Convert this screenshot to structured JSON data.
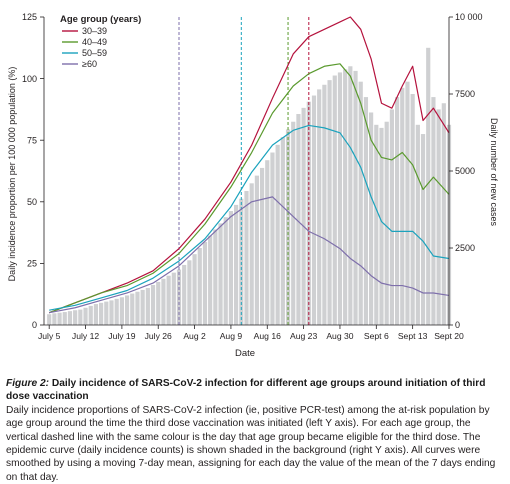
{
  "chart_data": {
    "type": "line",
    "xlabel": "Date",
    "ylabel": "Daily incidence proportion per 100 000 population (%)",
    "y2label": "Daily number of new cases",
    "ylim": [
      0,
      125
    ],
    "y2lim": [
      0,
      10000
    ],
    "yticks": [
      0,
      25,
      50,
      75,
      100,
      125
    ],
    "y2ticks": [
      "0",
      "2500",
      "5000",
      "7500",
      "10 000"
    ],
    "y2tick_values": [
      0,
      2500,
      5000,
      7500,
      10000
    ],
    "xlim": [
      "2021-07-04",
      "2021-09-20"
    ],
    "xticks": [
      "July 5",
      "July 12",
      "July 19",
      "July 26",
      "Aug 2",
      "Aug 9",
      "Aug 16",
      "Aug 23",
      "Aug 30",
      "Sept 6",
      "Sept 13",
      "Sept 20"
    ],
    "xtick_dates": [
      "2021-07-05",
      "2021-07-12",
      "2021-07-19",
      "2021-07-26",
      "2021-08-02",
      "2021-08-09",
      "2021-08-16",
      "2021-08-23",
      "2021-08-30",
      "2021-09-06",
      "2021-09-13",
      "2021-09-20"
    ],
    "grid": false,
    "legend": {
      "title": "Age group (years)",
      "position": "top-left",
      "entries": [
        "30–39",
        "40–49",
        "50–59",
        "≥60"
      ]
    },
    "series": [
      {
        "name": "30–39",
        "color": "#b5123d",
        "eligible_date": "2021-08-24",
        "x": [
          "2021-07-05",
          "2021-07-10",
          "2021-07-15",
          "2021-07-20",
          "2021-07-25",
          "2021-07-30",
          "2021-08-04",
          "2021-08-09",
          "2021-08-13",
          "2021-08-17",
          "2021-08-21",
          "2021-08-24",
          "2021-08-27",
          "2021-08-30",
          "2021-09-01",
          "2021-09-03",
          "2021-09-05",
          "2021-09-07",
          "2021-09-09",
          "2021-09-11",
          "2021-09-13",
          "2021-09-15",
          "2021-09-17",
          "2021-09-20"
        ],
        "y": [
          5,
          9,
          13,
          17,
          22,
          31,
          43,
          58,
          73,
          92,
          110,
          117,
          120,
          123,
          125,
          120,
          108,
          90,
          88,
          97,
          105,
          83,
          88,
          78
        ]
      },
      {
        "name": "40–49",
        "color": "#5a9a2e",
        "eligible_date": "2021-08-20",
        "x": [
          "2021-07-05",
          "2021-07-10",
          "2021-07-15",
          "2021-07-20",
          "2021-07-25",
          "2021-07-30",
          "2021-08-04",
          "2021-08-09",
          "2021-08-13",
          "2021-08-17",
          "2021-08-21",
          "2021-08-24",
          "2021-08-27",
          "2021-08-30",
          "2021-09-01",
          "2021-09-03",
          "2021-09-05",
          "2021-09-07",
          "2021-09-09",
          "2021-09-11",
          "2021-09-13",
          "2021-09-15",
          "2021-09-17",
          "2021-09-20"
        ],
        "y": [
          5,
          9,
          13,
          16,
          21,
          29,
          41,
          56,
          70,
          86,
          97,
          102,
          105,
          106,
          101,
          90,
          75,
          68,
          67,
          70,
          65,
          55,
          60,
          53
        ]
      },
      {
        "name": "50–59",
        "color": "#1ba3bd",
        "eligible_date": "2021-08-11",
        "x": [
          "2021-07-05",
          "2021-07-10",
          "2021-07-15",
          "2021-07-20",
          "2021-07-25",
          "2021-07-30",
          "2021-08-04",
          "2021-08-09",
          "2021-08-13",
          "2021-08-17",
          "2021-08-21",
          "2021-08-24",
          "2021-08-27",
          "2021-08-30",
          "2021-09-01",
          "2021-09-03",
          "2021-09-05",
          "2021-09-07",
          "2021-09-09",
          "2021-09-11",
          "2021-09-13",
          "2021-09-15",
          "2021-09-17",
          "2021-09-20"
        ],
        "y": [
          6,
          8,
          11,
          14,
          19,
          26,
          35,
          48,
          62,
          73,
          79,
          81,
          80,
          78,
          72,
          64,
          52,
          42,
          38,
          38,
          38,
          34,
          28,
          27
        ]
      },
      {
        "name": "≥60",
        "color": "#7e6fab",
        "eligible_date": "2021-07-30",
        "x": [
          "2021-07-05",
          "2021-07-10",
          "2021-07-15",
          "2021-07-20",
          "2021-07-25",
          "2021-07-30",
          "2021-08-04",
          "2021-08-09",
          "2021-08-13",
          "2021-08-17",
          "2021-08-21",
          "2021-08-24",
          "2021-08-27",
          "2021-08-30",
          "2021-09-01",
          "2021-09-03",
          "2021-09-05",
          "2021-09-07",
          "2021-09-09",
          "2021-09-11",
          "2021-09-13",
          "2021-09-15",
          "2021-09-17",
          "2021-09-20"
        ],
        "y": [
          5,
          7,
          10,
          13,
          17,
          24,
          34,
          44,
          50,
          52,
          44,
          38,
          35,
          31,
          27,
          24,
          20,
          17,
          16,
          16,
          15,
          13,
          13,
          12
        ]
      }
    ],
    "background_bars": {
      "name": "Daily number of new cases",
      "color": "#cfd0d2",
      "x": [
        "2021-07-05",
        "2021-07-06",
        "2021-07-07",
        "2021-07-08",
        "2021-07-09",
        "2021-07-10",
        "2021-07-11",
        "2021-07-12",
        "2021-07-13",
        "2021-07-14",
        "2021-07-15",
        "2021-07-16",
        "2021-07-17",
        "2021-07-18",
        "2021-07-19",
        "2021-07-20",
        "2021-07-21",
        "2021-07-22",
        "2021-07-23",
        "2021-07-24",
        "2021-07-25",
        "2021-07-26",
        "2021-07-27",
        "2021-07-28",
        "2021-07-29",
        "2021-07-30",
        "2021-07-31",
        "2021-08-01",
        "2021-08-02",
        "2021-08-03",
        "2021-08-04",
        "2021-08-05",
        "2021-08-06",
        "2021-08-07",
        "2021-08-08",
        "2021-08-09",
        "2021-08-10",
        "2021-08-11",
        "2021-08-12",
        "2021-08-13",
        "2021-08-14",
        "2021-08-15",
        "2021-08-16",
        "2021-08-17",
        "2021-08-18",
        "2021-08-19",
        "2021-08-20",
        "2021-08-21",
        "2021-08-22",
        "2021-08-23",
        "2021-08-24",
        "2021-08-25",
        "2021-08-26",
        "2021-08-27",
        "2021-08-28",
        "2021-08-29",
        "2021-08-30",
        "2021-08-31",
        "2021-09-01",
        "2021-09-02",
        "2021-09-03",
        "2021-09-04",
        "2021-09-05",
        "2021-09-06",
        "2021-09-07",
        "2021-09-08",
        "2021-09-09",
        "2021-09-10",
        "2021-09-11",
        "2021-09-12",
        "2021-09-13",
        "2021-09-14",
        "2021-09-15",
        "2021-09-16",
        "2021-09-17",
        "2021-09-18",
        "2021-09-19",
        "2021-09-20"
      ],
      "values": [
        350,
        380,
        400,
        420,
        450,
        480,
        500,
        560,
        620,
        680,
        720,
        760,
        800,
        850,
        900,
        960,
        1020,
        1080,
        1140,
        1200,
        1300,
        1400,
        1500,
        1600,
        1700,
        1800,
        1950,
        2100,
        2300,
        2500,
        2700,
        2900,
        3100,
        3300,
        3500,
        3700,
        3900,
        4100,
        4350,
        4600,
        4850,
        5100,
        5350,
        5600,
        5850,
        6100,
        6350,
        6600,
        6850,
        7050,
        7250,
        7450,
        7650,
        7800,
        7950,
        8100,
        8200,
        8300,
        8400,
        8250,
        7900,
        7400,
        6900,
        6500,
        6400,
        6600,
        7000,
        7400,
        7700,
        7900,
        7500,
        6500,
        6200,
        9000,
        7400,
        7000,
        7200,
        6500
      ]
    }
  },
  "caption": {
    "figure_label": "Figure 2:",
    "title": "Daily incidence of SARS-CoV-2 infection for different age groups around initiation of third dose vaccination",
    "body": "Daily incidence proportions of SARS-CoV-2 infection (ie, positive PCR-test) among the at-risk population by age group around the time the third dose vaccination was initiated (left Y axis). For each age group, the vertical dashed line with the same colour is the day that age group became eligible for the third dose. The epidemic curve (daily incidence counts) is shown shaded in the background (right Y axis). All curves were smoothed by using a moving 7-day mean, assigning for each day the value of the mean of the 7 days ending on that day."
  }
}
